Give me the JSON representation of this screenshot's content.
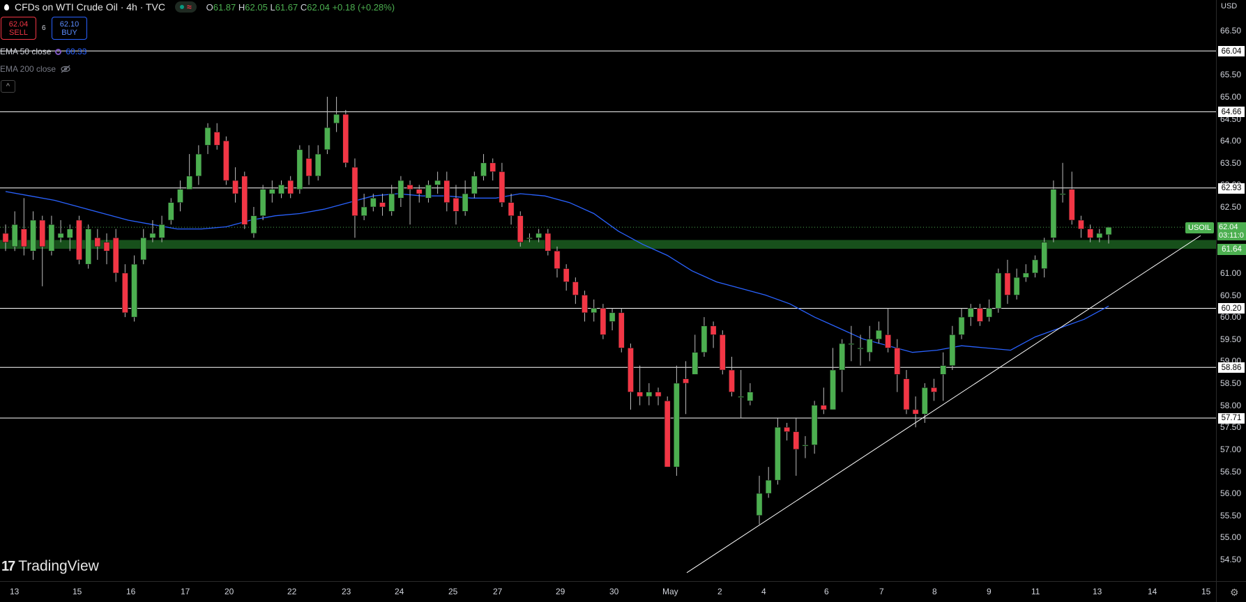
{
  "header": {
    "title": "CFDs on WTI Crude Oil · 4h · TVC",
    "ohlc": {
      "o_label": "O",
      "o": "61.87",
      "h_label": "H",
      "h": "62.05",
      "l_label": "L",
      "l": "61.67",
      "c_label": "C",
      "c": "62.04",
      "change": "+0.18 (+0.28%)"
    }
  },
  "trade": {
    "sell_price": "62.04",
    "sell_label": "SELL",
    "buy_price": "62.10",
    "buy_label": "BUY",
    "spread": "6"
  },
  "indicators": {
    "ema50_label": "EMA 50 close",
    "ema50_value": "60.33",
    "ema200_label": "EMA 200 close"
  },
  "currency": "USD",
  "brand": "TradingView",
  "symbol_tag": "USOIL",
  "last_price": "62.04",
  "countdown": "03:11:0",
  "zone_price": "61.64",
  "colors": {
    "up": "#4caf50",
    "down": "#f23645",
    "ema": "#2962ff",
    "zone": "#1b5e20",
    "bg": "#000000"
  },
  "chart_data": {
    "type": "candlestick",
    "symbol": "USOIL",
    "timeframe": "4h",
    "ylim": [
      54.0,
      67.0
    ],
    "y_ticks": [
      "66.50",
      "66.00",
      "65.50",
      "65.00",
      "64.50",
      "64.00",
      "63.50",
      "63.00",
      "62.50",
      "62.00",
      "61.50",
      "61.00",
      "60.50",
      "60.00",
      "59.50",
      "59.00",
      "58.50",
      "58.00",
      "57.50",
      "57.00",
      "56.50",
      "56.00",
      "55.50",
      "55.00",
      "54.50"
    ],
    "x_ticks": [
      "13",
      "15",
      "16",
      "17",
      "20",
      "22",
      "23",
      "24",
      "25",
      "27",
      "29",
      "30",
      "May",
      "2",
      "4",
      "6",
      "7",
      "8",
      "9",
      "11",
      "13",
      "14",
      "15"
    ],
    "horizontal_levels": [
      {
        "label": "66.04",
        "value": 66.04
      },
      {
        "label": "64.66",
        "value": 64.66
      },
      {
        "label": "62.93",
        "value": 62.93
      },
      {
        "label": "60.20",
        "value": 60.2
      },
      {
        "label": "58.86",
        "value": 58.86
      },
      {
        "label": "57.71",
        "value": 57.71
      }
    ],
    "support_zone": {
      "from": 61.55,
      "to": 61.75,
      "label": "61.64"
    },
    "trendline": [
      {
        "x": "May 1",
        "y": 54.2
      },
      {
        "x": "May 13",
        "y": 61.9
      }
    ],
    "ema50": [
      62.85,
      62.75,
      62.65,
      62.5,
      62.35,
      62.2,
      62.1,
      62.0,
      62.0,
      62.05,
      62.2,
      62.3,
      62.35,
      62.45,
      62.6,
      62.75,
      62.8,
      62.75,
      62.75,
      62.7,
      62.7,
      62.8,
      62.75,
      62.6,
      62.35,
      61.95,
      61.65,
      61.4,
      61.05,
      60.8,
      60.65,
      60.5,
      60.3,
      60.0,
      59.75,
      59.5,
      59.35,
      59.2,
      59.25,
      59.35,
      59.3,
      59.25,
      59.55,
      59.75,
      59.95,
      60.25
    ],
    "candles": [
      [
        61.9,
        61.7,
        62.1,
        61.5
      ],
      [
        61.6,
        62.1,
        62.4,
        61.5
      ],
      [
        62.0,
        61.6,
        62.7,
        61.4
      ],
      [
        61.5,
        62.2,
        62.4,
        61.3
      ],
      [
        62.2,
        61.6,
        62.3,
        60.7
      ],
      [
        61.5,
        62.1,
        62.3,
        61.4
      ],
      [
        61.8,
        61.9,
        62.2,
        61.7
      ],
      [
        61.8,
        62.0,
        62.1,
        61.5
      ],
      [
        62.2,
        61.3,
        62.3,
        61.2
      ],
      [
        61.2,
        62.0,
        62.1,
        61.1
      ],
      [
        61.8,
        61.6,
        62.0,
        61.3
      ],
      [
        61.7,
        61.5,
        61.9,
        61.2
      ],
      [
        61.8,
        61.0,
        62.0,
        60.8
      ],
      [
        61.0,
        60.1,
        61.2,
        60.0
      ],
      [
        60.0,
        61.2,
        61.4,
        59.9
      ],
      [
        61.3,
        61.8,
        62.0,
        61.2
      ],
      [
        61.8,
        61.9,
        62.2,
        61.7
      ],
      [
        61.8,
        62.1,
        62.3,
        61.7
      ],
      [
        62.2,
        62.6,
        62.7,
        62.1
      ],
      [
        62.6,
        62.9,
        63.1,
        62.4
      ],
      [
        62.9,
        63.2,
        63.7,
        62.9
      ],
      [
        63.2,
        63.7,
        63.9,
        63.0
      ],
      [
        63.9,
        64.3,
        64.4,
        63.7
      ],
      [
        64.2,
        63.9,
        64.4,
        63.8
      ],
      [
        64.0,
        63.1,
        64.1,
        63.0
      ],
      [
        63.1,
        62.8,
        63.4,
        62.6
      ],
      [
        63.2,
        62.1,
        63.3,
        62.0
      ],
      [
        61.9,
        62.3,
        62.5,
        61.8
      ],
      [
        62.3,
        62.9,
        63.0,
        62.2
      ],
      [
        62.8,
        62.9,
        63.1,
        62.6
      ],
      [
        62.8,
        63.0,
        63.1,
        62.7
      ],
      [
        63.1,
        62.8,
        63.2,
        62.7
      ],
      [
        62.9,
        63.8,
        63.9,
        62.8
      ],
      [
        63.6,
        63.2,
        63.9,
        63.0
      ],
      [
        63.2,
        63.7,
        63.9,
        63.1
      ],
      [
        63.8,
        64.3,
        65.0,
        63.7
      ],
      [
        64.4,
        64.6,
        65.0,
        64.2
      ],
      [
        64.6,
        63.5,
        64.7,
        63.4
      ],
      [
        63.4,
        62.3,
        63.6,
        61.8
      ],
      [
        62.3,
        62.5,
        62.8,
        62.2
      ],
      [
        62.5,
        62.7,
        62.8,
        62.4
      ],
      [
        62.6,
        62.5,
        62.8,
        62.3
      ],
      [
        62.4,
        62.8,
        63.0,
        62.3
      ],
      [
        62.7,
        63.1,
        63.2,
        62.5
      ],
      [
        63.0,
        62.9,
        63.1,
        62.1
      ],
      [
        62.9,
        62.8,
        63.0,
        62.6
      ],
      [
        62.7,
        63.0,
        63.1,
        62.6
      ],
      [
        63.0,
        63.1,
        63.3,
        62.8
      ],
      [
        63.1,
        62.6,
        63.3,
        62.4
      ],
      [
        62.7,
        62.4,
        63.0,
        62.1
      ],
      [
        62.4,
        62.8,
        63.1,
        62.3
      ],
      [
        62.8,
        63.2,
        63.3,
        62.7
      ],
      [
        63.2,
        63.5,
        63.7,
        63.1
      ],
      [
        63.5,
        63.3,
        63.6,
        63.1
      ],
      [
        63.3,
        62.6,
        63.5,
        62.5
      ],
      [
        62.6,
        62.3,
        62.8,
        62.1
      ],
      [
        62.3,
        61.7,
        62.4,
        61.6
      ],
      [
        61.8,
        61.8,
        61.9,
        61.7
      ],
      [
        61.8,
        61.9,
        62.0,
        61.7
      ],
      [
        61.9,
        61.5,
        62.0,
        61.4
      ],
      [
        61.5,
        61.1,
        61.6,
        60.9
      ],
      [
        61.1,
        60.8,
        61.2,
        60.6
      ],
      [
        60.8,
        60.5,
        60.9,
        60.3
      ],
      [
        60.5,
        60.1,
        60.6,
        59.9
      ],
      [
        60.1,
        60.2,
        60.4,
        59.9
      ],
      [
        60.2,
        59.6,
        60.3,
        59.5
      ],
      [
        59.9,
        60.1,
        60.2,
        59.7
      ],
      [
        60.1,
        59.3,
        60.2,
        59.2
      ],
      [
        59.3,
        58.3,
        59.4,
        57.9
      ],
      [
        58.3,
        58.2,
        58.9,
        58.0
      ],
      [
        58.2,
        58.3,
        58.5,
        58.0
      ],
      [
        58.3,
        58.2,
        58.4,
        58.0
      ],
      [
        58.1,
        56.6,
        58.2,
        56.6
      ],
      [
        56.6,
        58.5,
        58.9,
        56.4
      ],
      [
        58.6,
        58.5,
        59.0,
        57.8
      ],
      [
        58.7,
        59.2,
        59.6,
        58.7
      ],
      [
        59.2,
        59.8,
        60.0,
        59.1
      ],
      [
        59.8,
        59.6,
        59.9,
        59.3
      ],
      [
        59.6,
        58.8,
        59.7,
        58.7
      ],
      [
        58.8,
        58.3,
        59.1,
        58.2
      ],
      [
        58.2,
        58.2,
        58.8,
        57.7
      ],
      [
        58.1,
        58.3,
        58.5,
        58.0
      ],
      [
        55.5,
        56.0,
        56.4,
        55.3
      ],
      [
        56.0,
        56.3,
        56.6,
        55.9
      ],
      [
        56.3,
        57.5,
        57.7,
        56.2
      ],
      [
        57.5,
        57.4,
        57.6,
        57.2
      ],
      [
        57.4,
        57.0,
        57.7,
        56.4
      ],
      [
        57.1,
        57.1,
        57.3,
        56.8
      ],
      [
        57.1,
        58.0,
        58.1,
        56.9
      ],
      [
        58.0,
        57.9,
        58.4,
        57.8
      ],
      [
        57.9,
        58.8,
        59.3,
        57.9
      ],
      [
        58.8,
        59.4,
        59.5,
        58.3
      ],
      [
        59.4,
        59.4,
        59.8,
        59.0
      ],
      [
        59.3,
        59.3,
        59.6,
        58.9
      ],
      [
        59.2,
        59.5,
        59.8,
        59.0
      ],
      [
        59.5,
        59.7,
        59.9,
        59.4
      ],
      [
        59.6,
        59.3,
        60.2,
        59.2
      ],
      [
        59.3,
        58.7,
        59.5,
        58.3
      ],
      [
        58.6,
        57.9,
        58.8,
        57.8
      ],
      [
        57.9,
        57.8,
        58.2,
        57.5
      ],
      [
        57.8,
        58.4,
        58.5,
        57.6
      ],
      [
        58.4,
        58.3,
        58.6,
        58.1
      ],
      [
        58.7,
        58.9,
        59.2,
        58.1
      ],
      [
        58.9,
        59.6,
        59.8,
        58.8
      ],
      [
        59.6,
        60.0,
        60.2,
        59.5
      ],
      [
        60.0,
        60.2,
        60.3,
        59.8
      ],
      [
        60.2,
        59.9,
        60.3,
        59.8
      ],
      [
        60.0,
        60.2,
        60.4,
        59.9
      ],
      [
        60.2,
        61.0,
        61.1,
        60.1
      ],
      [
        61.0,
        60.5,
        61.3,
        60.3
      ],
      [
        60.5,
        60.9,
        61.1,
        60.4
      ],
      [
        60.9,
        61.0,
        61.2,
        60.8
      ],
      [
        61.0,
        61.3,
        61.4,
        60.9
      ],
      [
        61.1,
        61.7,
        61.8,
        60.9
      ],
      [
        61.8,
        62.9,
        63.1,
        61.7
      ],
      [
        62.8,
        62.8,
        63.5,
        62.6
      ],
      [
        62.9,
        62.2,
        63.3,
        62.1
      ],
      [
        62.2,
        62.0,
        62.3,
        61.8
      ],
      [
        62.0,
        61.8,
        62.1,
        61.7
      ],
      [
        61.8,
        61.9,
        62.0,
        61.7
      ],
      [
        61.87,
        62.04,
        62.05,
        61.67
      ]
    ]
  }
}
